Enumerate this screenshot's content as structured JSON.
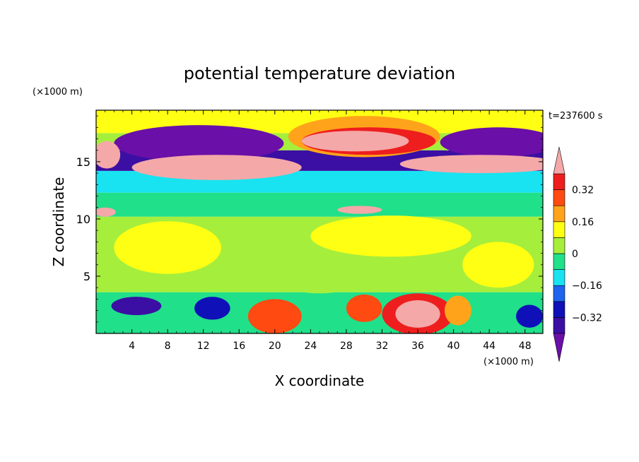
{
  "chart_data": {
    "type": "heatmap",
    "title": "potential temperature deviation",
    "xlabel": "X coordinate",
    "ylabel": "Z coordinate",
    "x_unit_label": "(×1000 m)",
    "y_unit_label": "(×1000 m)",
    "time_label": "t=237600 s",
    "xlim": [
      0,
      50
    ],
    "ylim": [
      0,
      19.5
    ],
    "x_ticks": [
      4,
      8,
      12,
      16,
      20,
      24,
      28,
      32,
      36,
      40,
      44,
      48
    ],
    "y_ticks": [
      5,
      10,
      15
    ],
    "colorbar": {
      "levels": [
        -0.4,
        -0.32,
        -0.24,
        -0.16,
        -0.08,
        0,
        0.08,
        0.16,
        0.24,
        0.32,
        0.4
      ],
      "tick_values": [
        0.32,
        0.16,
        0,
        -0.16,
        -0.32
      ],
      "tick_labels": [
        "0.32",
        "0.16",
        "0",
        "−0.16",
        "−0.32"
      ],
      "colors": [
        "#6a0fa8",
        "#3b0fa3",
        "#1010b8",
        "#1f63f0",
        "#19e3f0",
        "#20e08a",
        "#a6ee3c",
        "#ffff14",
        "#ffa41a",
        "#ff4a12",
        "#ee1e1e",
        "#f4a8a8"
      ],
      "extend": "both"
    },
    "fields": [
      {
        "kind": "layer",
        "z0": 0,
        "z1": 3.6,
        "level": 5
      },
      {
        "kind": "layer",
        "z0": 3.6,
        "z1": 10.2,
        "level": 6
      },
      {
        "kind": "layer",
        "z0": 10.2,
        "z1": 12.3,
        "level": 5
      },
      {
        "kind": "layer",
        "z0": 12.3,
        "z1": 14.2,
        "level": 4
      },
      {
        "kind": "layer",
        "z0": 14.2,
        "z1": 16.0,
        "level": 1
      },
      {
        "kind": "layer",
        "z0": 16.0,
        "z1": 17.5,
        "level": 6
      },
      {
        "kind": "layer",
        "z0": 17.5,
        "z1": 19.5,
        "level": 7
      },
      {
        "kind": "blob",
        "x": 11.5,
        "z": 16.6,
        "rx": 9.5,
        "rz": 1.6,
        "level": 0
      },
      {
        "kind": "blob",
        "x": 45,
        "z": 16.7,
        "rx": 6.5,
        "rz": 1.3,
        "level": 0
      },
      {
        "kind": "blob",
        "x": 30,
        "z": 17.2,
        "rx": 8.5,
        "rz": 1.8,
        "level": 8
      },
      {
        "kind": "blob",
        "x": 30.5,
        "z": 16.8,
        "rx": 7.5,
        "rz": 1.2,
        "level": 10
      },
      {
        "kind": "blob",
        "x": 29,
        "z": 16.8,
        "rx": 6,
        "rz": 0.9,
        "level": 11
      },
      {
        "kind": "blob",
        "x": 13.5,
        "z": 14.5,
        "rx": 9.5,
        "rz": 1.1,
        "level": 11
      },
      {
        "kind": "blob",
        "x": 43,
        "z": 14.8,
        "rx": 9,
        "rz": 0.8,
        "level": 11
      },
      {
        "kind": "blob",
        "x": 1.2,
        "z": 15.6,
        "rx": 1.5,
        "rz": 1.2,
        "level": 11
      },
      {
        "kind": "blob",
        "x": 29.5,
        "z": 10.8,
        "rx": 2.5,
        "rz": 0.35,
        "level": 11
      },
      {
        "kind": "blob",
        "x": 1,
        "z": 10.6,
        "rx": 1.2,
        "rz": 0.4,
        "level": 11
      },
      {
        "kind": "blob",
        "x": 25,
        "z": 6.5,
        "rx": 7,
        "rz": 3,
        "level": 6
      },
      {
        "kind": "blob",
        "x": 8,
        "z": 7.5,
        "rx": 6,
        "rz": 2.3,
        "level": 7
      },
      {
        "kind": "blob",
        "x": 33,
        "z": 8.5,
        "rx": 9,
        "rz": 1.8,
        "level": 7
      },
      {
        "kind": "blob",
        "x": 45,
        "z": 6,
        "rx": 4,
        "rz": 2,
        "level": 7
      },
      {
        "kind": "blob",
        "x": 36,
        "z": 1.7,
        "rx": 4,
        "rz": 1.8,
        "level": 10
      },
      {
        "kind": "blob",
        "x": 36,
        "z": 1.7,
        "rx": 2.5,
        "rz": 1.2,
        "level": 11
      },
      {
        "kind": "blob",
        "x": 20,
        "z": 1.5,
        "rx": 3,
        "rz": 1.5,
        "level": 9
      },
      {
        "kind": "blob",
        "x": 30,
        "z": 2.2,
        "rx": 2,
        "rz": 1.2,
        "level": 9
      },
      {
        "kind": "blob",
        "x": 40.5,
        "z": 2,
        "rx": 1.5,
        "rz": 1.3,
        "level": 8
      },
      {
        "kind": "blob",
        "x": 4.5,
        "z": 2.4,
        "rx": 2.8,
        "rz": 0.8,
        "level": 1
      },
      {
        "kind": "blob",
        "x": 13,
        "z": 2.2,
        "rx": 2,
        "rz": 1,
        "level": 2
      },
      {
        "kind": "blob",
        "x": 48.5,
        "z": 1.5,
        "rx": 1.5,
        "rz": 1,
        "level": 2
      }
    ]
  }
}
